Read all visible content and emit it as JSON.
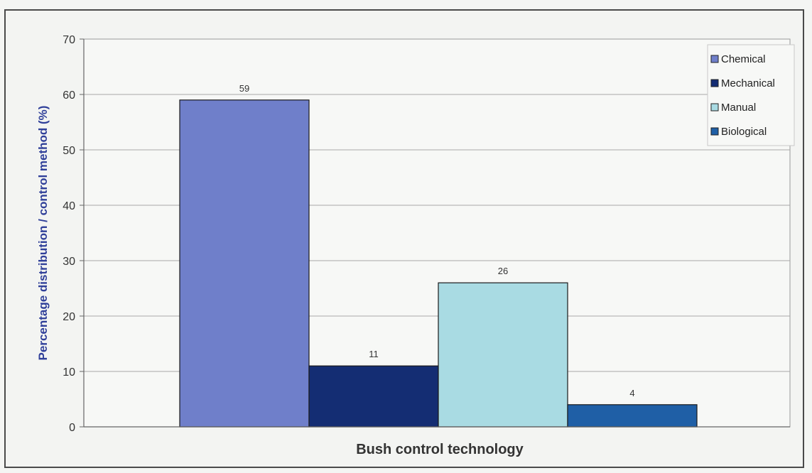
{
  "chart_data": {
    "type": "bar",
    "title": "",
    "xlabel": "Bush control technology",
    "ylabel": "Percentage distribution / control method (%)",
    "ylim": [
      0,
      70
    ],
    "yticks": [
      0,
      10,
      20,
      30,
      40,
      50,
      60,
      70
    ],
    "grid": true,
    "legend_position": "top-right",
    "series": [
      {
        "name": "Chemical",
        "value": 59,
        "color": "#6f7fca"
      },
      {
        "name": "Mechanical",
        "value": 11,
        "color": "#142d73"
      },
      {
        "name": "Manual",
        "value": 26,
        "color": "#a9dbe3"
      },
      {
        "name": "Biological",
        "value": 4,
        "color": "#1f5fa6"
      }
    ]
  }
}
